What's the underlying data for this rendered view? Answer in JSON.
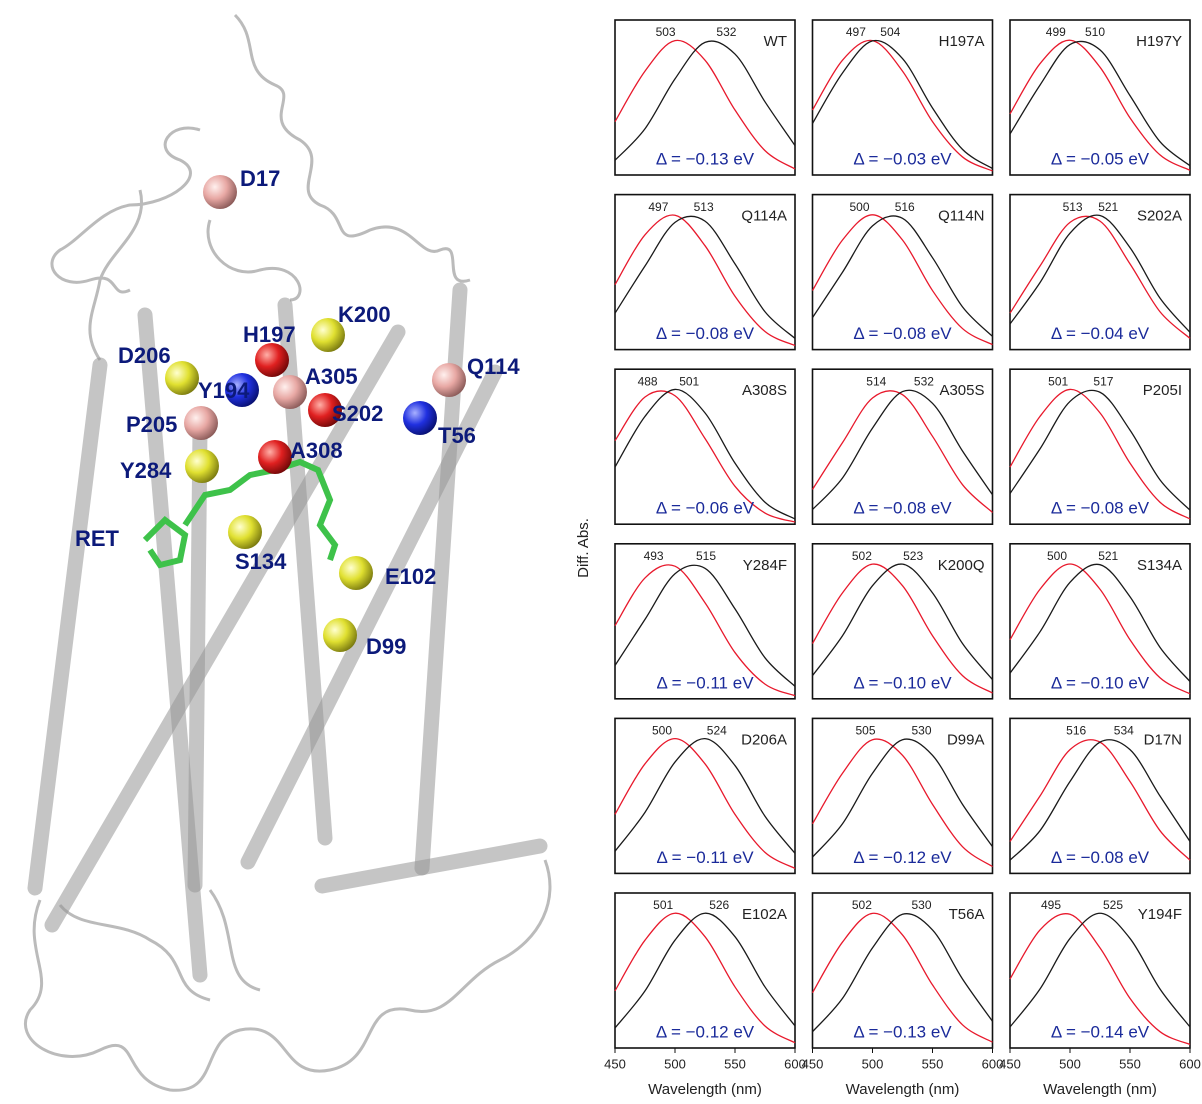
{
  "structure": {
    "labels": [
      "D17",
      "K200",
      "H197",
      "D206",
      "Y194",
      "A305",
      "Q114",
      "S202",
      "T56",
      "P205",
      "A308",
      "Y284",
      "RET",
      "S134",
      "E102",
      "D99"
    ]
  },
  "figure": {
    "ylabel": "Diff. Abs."
  },
  "chart_data": [
    {
      "type": "line",
      "title": "WT",
      "annotation": "Δ = −0.13 eV",
      "peak_labels": [
        503,
        532
      ],
      "x": [
        450,
        475,
        500,
        525,
        550,
        575,
        600
      ],
      "xlim": [
        450,
        600
      ],
      "ylim": [
        0,
        1.15
      ],
      "series": [
        {
          "color": "#e8192c",
          "values": [
            0.396,
            0.771,
            0.997,
            0.852,
            0.482,
            0.181,
            0.045
          ]
        },
        {
          "color": "#1a1a1a",
          "values": [
            0.109,
            0.343,
            0.713,
            0.984,
            0.897,
            0.543,
            0.218
          ]
        }
      ]
    },
    {
      "type": "line",
      "title": "H197A",
      "annotation": "Δ = −0.03 eV",
      "peak_labels": [
        497,
        504
      ],
      "x": [
        450,
        475,
        500,
        525,
        550,
        575,
        600
      ],
      "xlim": [
        450,
        600
      ],
      "ylim": [
        0,
        1.15
      ],
      "series": [
        {
          "color": "#e8192c",
          "values": [
            0.482,
            0.852,
            0.997,
            0.771,
            0.396,
            0.134,
            0.03
          ]
        },
        {
          "color": "#1a1a1a",
          "values": [
            0.382,
            0.757,
            0.995,
            0.864,
            0.497,
            0.19,
            0.048
          ]
        }
      ]
    },
    {
      "type": "line",
      "title": "H197Y",
      "annotation": "Δ = −0.05 eV",
      "peak_labels": [
        499,
        510
      ],
      "x": [
        450,
        475,
        500,
        525,
        550,
        575,
        600
      ],
      "xlim": [
        450,
        600
      ],
      "ylim": [
        0,
        1.15
      ],
      "series": [
        {
          "color": "#e8192c",
          "values": [
            0.453,
            0.826,
            1.0,
            0.8,
            0.424,
            0.149,
            0.035
          ]
        },
        {
          "color": "#1a1a1a",
          "values": [
            0.304,
            0.667,
            0.968,
            0.928,
            0.589,
            0.247,
            0.069
          ]
        }
      ]
    },
    {
      "type": "line",
      "title": "Q114A",
      "annotation": "Δ = −0.08 eV",
      "peak_labels": [
        497,
        513
      ],
      "x": [
        450,
        475,
        500,
        525,
        550,
        575,
        600
      ],
      "xlim": [
        450,
        600
      ],
      "ylim": [
        0,
        1.15
      ],
      "series": [
        {
          "color": "#e8192c",
          "values": [
            0.482,
            0.852,
            0.997,
            0.771,
            0.396,
            0.134,
            0.03
          ]
        },
        {
          "color": "#1a1a1a",
          "values": [
            0.27,
            0.62,
            0.944,
            0.953,
            0.636,
            0.281,
            0.083
          ]
        }
      ]
    },
    {
      "type": "line",
      "title": "Q114N",
      "annotation": "Δ = −0.08 eV",
      "peak_labels": [
        500,
        516
      ],
      "x": [
        450,
        475,
        500,
        525,
        550,
        575,
        600
      ],
      "xlim": [
        450,
        600
      ],
      "ylim": [
        0,
        1.15
      ],
      "series": [
        {
          "color": "#e8192c",
          "values": [
            0.438,
            0.813,
            1.0,
            0.813,
            0.438,
            0.156,
            0.037
          ]
        },
        {
          "color": "#1a1a1a",
          "values": [
            0.237,
            0.574,
            0.918,
            0.974,
            0.682,
            0.317,
            0.098
          ]
        }
      ]
    },
    {
      "type": "line",
      "title": "S202A",
      "annotation": "Δ = −0.04 eV",
      "peak_labels": [
        513,
        521
      ],
      "x": [
        450,
        475,
        500,
        525,
        550,
        575,
        600
      ],
      "xlim": [
        450,
        600
      ],
      "ylim": [
        0,
        1.15
      ],
      "series": [
        {
          "color": "#e8192c",
          "values": [
            0.27,
            0.62,
            0.944,
            0.953,
            0.636,
            0.281,
            0.083
          ]
        },
        {
          "color": "#1a1a1a",
          "values": [
            0.19,
            0.497,
            0.864,
            0.995,
            0.757,
            0.382,
            0.128
          ]
        }
      ]
    },
    {
      "type": "line",
      "title": "A308S",
      "annotation": "Δ = −0.06 eV",
      "peak_labels": [
        488,
        501
      ],
      "x": [
        450,
        475,
        500,
        525,
        550,
        575,
        600
      ],
      "xlim": [
        450,
        600
      ],
      "ylim": [
        0,
        1.15
      ],
      "series": [
        {
          "color": "#e8192c",
          "values": [
            0.62,
            0.944,
            0.953,
            0.636,
            0.281,
            0.083,
            0.016
          ]
        },
        {
          "color": "#1a1a1a",
          "values": [
            0.424,
            0.8,
            1.0,
            0.826,
            0.453,
            0.163,
            0.039
          ]
        }
      ]
    },
    {
      "type": "line",
      "title": "A305S",
      "annotation": "Δ = −0.08 eV",
      "peak_labels": [
        514,
        532
      ],
      "x": [
        450,
        475,
        500,
        525,
        550,
        575,
        600
      ],
      "xlim": [
        450,
        600
      ],
      "ylim": [
        0,
        1.15
      ],
      "series": [
        {
          "color": "#e8192c",
          "values": [
            0.258,
            0.605,
            0.936,
            0.961,
            0.652,
            0.293,
            0.087
          ]
        },
        {
          "color": "#1a1a1a",
          "values": [
            0.109,
            0.343,
            0.713,
            0.984,
            0.897,
            0.543,
            0.218
          ]
        }
      ]
    },
    {
      "type": "line",
      "title": "P205I",
      "annotation": "Δ = −0.08 eV",
      "peak_labels": [
        501,
        517
      ],
      "x": [
        450,
        475,
        500,
        525,
        550,
        575,
        600
      ],
      "xlim": [
        450,
        600
      ],
      "ylim": [
        0,
        1.15
      ],
      "series": [
        {
          "color": "#e8192c",
          "values": [
            0.424,
            0.8,
            1.0,
            0.826,
            0.453,
            0.163,
            0.039
          ]
        },
        {
          "color": "#1a1a1a",
          "values": [
            0.227,
            0.559,
            0.911,
            0.979,
            0.698,
            0.329,
            0.104
          ]
        }
      ]
    },
    {
      "type": "line",
      "title": "Y284F",
      "annotation": "Δ = −0.11 eV",
      "peak_labels": [
        493,
        515
      ],
      "x": [
        450,
        475,
        500,
        525,
        550,
        575,
        600
      ],
      "xlim": [
        450,
        600
      ],
      "ylim": [
        0,
        1.15
      ],
      "series": [
        {
          "color": "#e8192c",
          "values": [
            0.543,
            0.897,
            0.984,
            0.713,
            0.343,
            0.109,
            0.023
          ]
        },
        {
          "color": "#1a1a1a",
          "values": [
            0.247,
            0.589,
            0.928,
            0.968,
            0.667,
            0.304,
            0.092
          ]
        }
      ]
    },
    {
      "type": "line",
      "title": "K200Q",
      "annotation": "Δ = −0.10 eV",
      "peak_labels": [
        502,
        523
      ],
      "x": [
        450,
        475,
        500,
        525,
        550,
        575,
        600
      ],
      "xlim": [
        450,
        600
      ],
      "ylim": [
        0,
        1.15
      ],
      "series": [
        {
          "color": "#e8192c",
          "values": [
            0.41,
            0.786,
            0.999,
            0.839,
            0.468,
            0.172,
            0.043
          ]
        },
        {
          "color": "#1a1a1a",
          "values": [
            0.172,
            0.468,
            0.839,
            0.999,
            0.786,
            0.41,
            0.142
          ]
        }
      ]
    },
    {
      "type": "line",
      "title": "S134A",
      "annotation": "Δ = −0.10 eV",
      "peak_labels": [
        500,
        521
      ],
      "x": [
        450,
        475,
        500,
        525,
        550,
        575,
        600
      ],
      "xlim": [
        450,
        600
      ],
      "ylim": [
        0,
        1.15
      ],
      "series": [
        {
          "color": "#e8192c",
          "values": [
            0.438,
            0.813,
            1.0,
            0.813,
            0.438,
            0.156,
            0.037
          ]
        },
        {
          "color": "#1a1a1a",
          "values": [
            0.19,
            0.497,
            0.864,
            0.995,
            0.757,
            0.382,
            0.128
          ]
        }
      ]
    },
    {
      "type": "line",
      "title": "D206A",
      "annotation": "Δ = −0.11 eV",
      "peak_labels": [
        500,
        524
      ],
      "x": [
        450,
        475,
        500,
        525,
        550,
        575,
        600
      ],
      "xlim": [
        450,
        600
      ],
      "ylim": [
        0,
        1.15
      ],
      "series": [
        {
          "color": "#e8192c",
          "values": [
            0.438,
            0.813,
            1.0,
            0.813,
            0.438,
            0.156,
            0.037
          ]
        },
        {
          "color": "#1a1a1a",
          "values": [
            0.164,
            0.453,
            0.826,
            1.0,
            0.8,
            0.424,
            0.149
          ]
        }
      ]
    },
    {
      "type": "line",
      "title": "D99A",
      "annotation": "Δ = −0.12 eV",
      "peak_labels": [
        505,
        530
      ],
      "x": [
        450,
        475,
        500,
        525,
        550,
        575,
        600
      ],
      "xlim": [
        450,
        600
      ],
      "ylim": [
        0,
        1.15
      ],
      "series": [
        {
          "color": "#e8192c",
          "values": [
            0.368,
            0.743,
            0.992,
            0.876,
            0.512,
            0.198,
            0.051
          ]
        },
        {
          "color": "#1a1a1a",
          "values": [
            0.121,
            0.368,
            0.743,
            0.992,
            0.876,
            0.512,
            0.198
          ]
        }
      ]
    },
    {
      "type": "line",
      "title": "D17N",
      "annotation": "Δ = −0.08 eV",
      "peak_labels": [
        516,
        534
      ],
      "x": [
        450,
        475,
        500,
        525,
        550,
        575,
        600
      ],
      "xlim": [
        450,
        600
      ],
      "ylim": [
        0,
        1.15
      ],
      "series": [
        {
          "color": "#e8192c",
          "values": [
            0.237,
            0.574,
            0.918,
            0.974,
            0.682,
            0.317,
            0.098
          ]
        },
        {
          "color": "#1a1a1a",
          "values": [
            0.098,
            0.317,
            0.682,
            0.974,
            0.918,
            0.574,
            0.237
          ]
        }
      ]
    },
    {
      "type": "line",
      "title": "E102A",
      "annotation": "Δ = −0.12 eV",
      "peak_labels": [
        501,
        526
      ],
      "x": [
        450,
        475,
        500,
        525,
        550,
        575,
        600
      ],
      "xlim": [
        450,
        600
      ],
      "ylim": [
        0,
        1.15
      ],
      "xticks": [
        450,
        500,
        550,
        600
      ],
      "xlabel": "Wavelength (nm)",
      "series": [
        {
          "color": "#e8192c",
          "values": [
            0.424,
            0.8,
            1.0,
            0.826,
            0.453,
            0.163,
            0.039
          ]
        },
        {
          "color": "#1a1a1a",
          "values": [
            0.149,
            0.424,
            0.8,
            1.0,
            0.826,
            0.453,
            0.164
          ]
        }
      ]
    },
    {
      "type": "line",
      "title": "T56A",
      "annotation": "Δ = −0.13 eV",
      "peak_labels": [
        502,
        530
      ],
      "x": [
        450,
        475,
        500,
        525,
        550,
        575,
        600
      ],
      "xlim": [
        450,
        600
      ],
      "ylim": [
        0,
        1.15
      ],
      "xticks": [
        450,
        500,
        550,
        600
      ],
      "xlabel": "Wavelength (nm)",
      "series": [
        {
          "color": "#e8192c",
          "values": [
            0.41,
            0.786,
            0.999,
            0.839,
            0.468,
            0.172,
            0.043
          ]
        },
        {
          "color": "#1a1a1a",
          "values": [
            0.121,
            0.368,
            0.743,
            0.992,
            0.876,
            0.512,
            0.198
          ]
        }
      ]
    },
    {
      "type": "line",
      "title": "Y194F",
      "annotation": "Δ = −0.14 eV",
      "peak_labels": [
        495,
        525
      ],
      "x": [
        450,
        475,
        500,
        525,
        550,
        575,
        600
      ],
      "xlim": [
        450,
        600
      ],
      "ylim": [
        0,
        1.15
      ],
      "xticks": [
        450,
        500,
        550,
        600
      ],
      "xlabel": "Wavelength (nm)",
      "series": [
        {
          "color": "#e8192c",
          "values": [
            0.512,
            0.876,
            0.992,
            0.743,
            0.368,
            0.121,
            0.026
          ]
        },
        {
          "color": "#1a1a1a",
          "values": [
            0.156,
            0.438,
            0.813,
            1.0,
            0.813,
            0.438,
            0.156
          ]
        }
      ]
    }
  ]
}
